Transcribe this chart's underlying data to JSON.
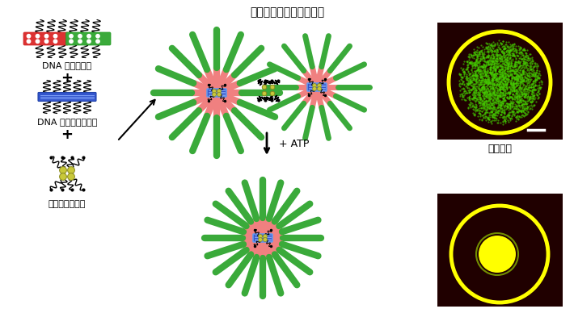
{
  "title": "高次階層化アスター構造",
  "label_microtubule": "DNA 修飾微小管",
  "label_origami": "DNA オリガミ構造体",
  "label_kinesin": "キネシン四量体",
  "label_contraction": "収縮運動",
  "label_atp": "+ ATP",
  "bg_color": "#ffffff",
  "mt_red": "#dc3232",
  "mt_green": "#3aaa3a",
  "origami_blue": "#3355cc",
  "origami_cyan": "#6699ee",
  "kinesin_yellow": "#c8c83a",
  "spoke_pink": "#f08080",
  "img_bg": "#200000",
  "circle_yellow": "#ffff00",
  "green_fill": "#44cc00"
}
